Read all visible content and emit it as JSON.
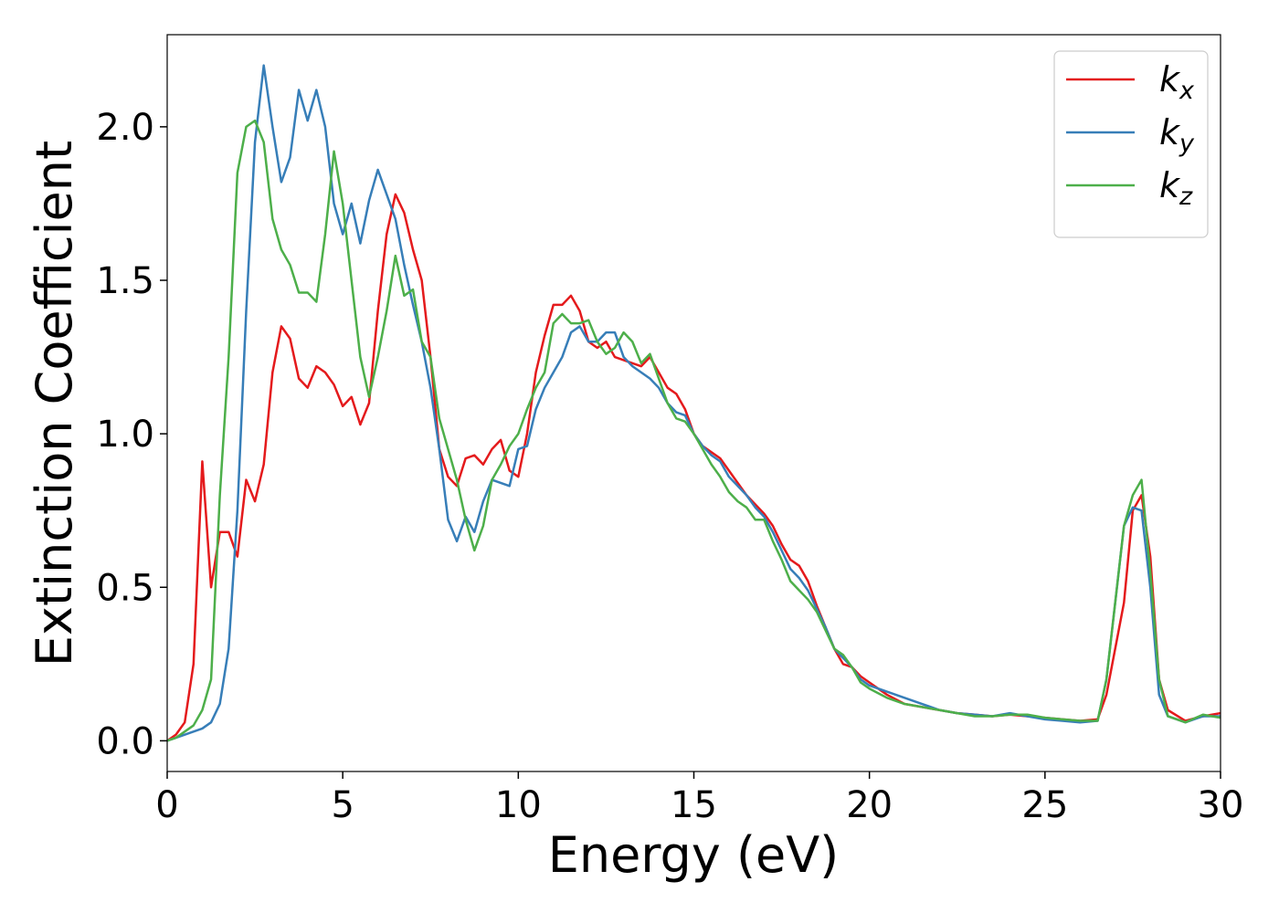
{
  "chart_data": {
    "type": "line",
    "x_label": "Energy (eV)",
    "y_label": "Extinction Coefficient",
    "x": [
      0,
      0.25,
      0.5,
      0.75,
      1,
      1.25,
      1.5,
      1.75,
      2,
      2.25,
      2.5,
      2.75,
      3,
      3.25,
      3.5,
      3.75,
      4,
      4.25,
      4.5,
      4.75,
      5,
      5.25,
      5.5,
      5.75,
      6,
      6.25,
      6.5,
      6.75,
      7,
      7.25,
      7.5,
      7.75,
      8,
      8.25,
      8.5,
      8.75,
      9,
      9.25,
      9.5,
      9.75,
      10,
      10.25,
      10.5,
      10.75,
      11,
      11.25,
      11.5,
      11.75,
      12,
      12.25,
      12.5,
      12.75,
      13,
      13.25,
      13.5,
      13.75,
      14,
      14.25,
      14.5,
      14.75,
      15,
      15.25,
      15.5,
      15.75,
      16,
      16.25,
      16.5,
      16.75,
      17,
      17.25,
      17.5,
      17.75,
      18,
      18.25,
      18.5,
      18.75,
      19,
      19.25,
      19.5,
      19.75,
      20,
      20.5,
      21,
      21.5,
      22,
      22.5,
      23,
      23.5,
      24,
      24.5,
      25,
      25.5,
      26,
      26.5,
      26.75,
      27,
      27.25,
      27.5,
      27.75,
      28,
      28.25,
      28.5,
      29,
      29.5,
      30
    ],
    "series": [
      {
        "name": "kx",
        "color": "#e41a1c",
        "values": [
          0,
          0.02,
          0.06,
          0.25,
          0.91,
          0.5,
          0.68,
          0.68,
          0.6,
          0.85,
          0.78,
          0.9,
          1.2,
          1.35,
          1.31,
          1.18,
          1.15,
          1.22,
          1.2,
          1.16,
          1.09,
          1.12,
          1.03,
          1.1,
          1.4,
          1.65,
          1.78,
          1.72,
          1.6,
          1.5,
          1.25,
          0.95,
          0.86,
          0.83,
          0.92,
          0.93,
          0.9,
          0.95,
          0.98,
          0.88,
          0.86,
          1.0,
          1.2,
          1.32,
          1.42,
          1.42,
          1.45,
          1.4,
          1.3,
          1.28,
          1.3,
          1.25,
          1.24,
          1.23,
          1.22,
          1.25,
          1.2,
          1.15,
          1.13,
          1.08,
          1.0,
          0.96,
          0.94,
          0.92,
          0.88,
          0.84,
          0.8,
          0.77,
          0.74,
          0.7,
          0.64,
          0.59,
          0.57,
          0.52,
          0.44,
          0.37,
          0.3,
          0.25,
          0.24,
          0.21,
          0.19,
          0.15,
          0.12,
          0.11,
          0.1,
          0.09,
          0.085,
          0.08,
          0.085,
          0.08,
          0.075,
          0.07,
          0.065,
          0.07,
          0.15,
          0.3,
          0.45,
          0.75,
          0.8,
          0.6,
          0.2,
          0.1,
          0.065,
          0.08,
          0.09
        ]
      },
      {
        "name": "ky",
        "color": "#377eb8",
        "values": [
          0,
          0.01,
          0.02,
          0.03,
          0.04,
          0.06,
          0.12,
          0.3,
          0.75,
          1.4,
          1.95,
          2.2,
          2.0,
          1.82,
          1.9,
          2.12,
          2.02,
          2.12,
          2.0,
          1.75,
          1.65,
          1.75,
          1.62,
          1.76,
          1.86,
          1.78,
          1.7,
          1.55,
          1.42,
          1.3,
          1.15,
          0.95,
          0.72,
          0.65,
          0.73,
          0.68,
          0.78,
          0.85,
          0.84,
          0.83,
          0.95,
          0.96,
          1.08,
          1.15,
          1.2,
          1.25,
          1.33,
          1.35,
          1.3,
          1.3,
          1.33,
          1.33,
          1.25,
          1.22,
          1.2,
          1.18,
          1.15,
          1.1,
          1.07,
          1.06,
          1.0,
          0.96,
          0.93,
          0.91,
          0.86,
          0.83,
          0.8,
          0.76,
          0.73,
          0.68,
          0.62,
          0.56,
          0.53,
          0.49,
          0.43,
          0.37,
          0.3,
          0.27,
          0.24,
          0.2,
          0.18,
          0.16,
          0.14,
          0.12,
          0.1,
          0.09,
          0.085,
          0.08,
          0.09,
          0.08,
          0.07,
          0.065,
          0.06,
          0.065,
          0.2,
          0.45,
          0.7,
          0.76,
          0.75,
          0.5,
          0.15,
          0.08,
          0.06,
          0.08,
          0.08
        ]
      },
      {
        "name": "kz",
        "color": "#4daf4a",
        "values": [
          0,
          0.01,
          0.03,
          0.05,
          0.1,
          0.2,
          0.8,
          1.25,
          1.85,
          2.0,
          2.02,
          1.95,
          1.7,
          1.6,
          1.55,
          1.46,
          1.46,
          1.43,
          1.65,
          1.92,
          1.75,
          1.5,
          1.25,
          1.12,
          1.25,
          1.4,
          1.58,
          1.45,
          1.47,
          1.3,
          1.25,
          1.05,
          0.95,
          0.85,
          0.72,
          0.62,
          0.7,
          0.85,
          0.9,
          0.96,
          1.0,
          1.08,
          1.15,
          1.2,
          1.36,
          1.39,
          1.36,
          1.36,
          1.37,
          1.3,
          1.26,
          1.28,
          1.33,
          1.3,
          1.23,
          1.26,
          1.18,
          1.1,
          1.05,
          1.04,
          1.0,
          0.95,
          0.9,
          0.86,
          0.81,
          0.78,
          0.76,
          0.72,
          0.72,
          0.65,
          0.59,
          0.52,
          0.49,
          0.46,
          0.42,
          0.36,
          0.3,
          0.28,
          0.24,
          0.19,
          0.17,
          0.14,
          0.12,
          0.11,
          0.1,
          0.09,
          0.08,
          0.08,
          0.085,
          0.085,
          0.075,
          0.07,
          0.065,
          0.065,
          0.2,
          0.45,
          0.7,
          0.8,
          0.85,
          0.55,
          0.2,
          0.08,
          0.06,
          0.085,
          0.075
        ]
      }
    ],
    "xlim": [
      0,
      30
    ],
    "xticks": [
      0,
      5,
      10,
      15,
      20,
      25,
      30
    ],
    "ylim": [
      -0.1,
      2.3
    ],
    "yticks": [
      {
        "value": 0,
        "label": "0.0"
      },
      0.5,
      {
        "value": 1,
        "label": "1.0"
      },
      1.5,
      {
        "value": 2,
        "label": "2.0"
      }
    ],
    "grid": false,
    "legend": "upper right"
  }
}
